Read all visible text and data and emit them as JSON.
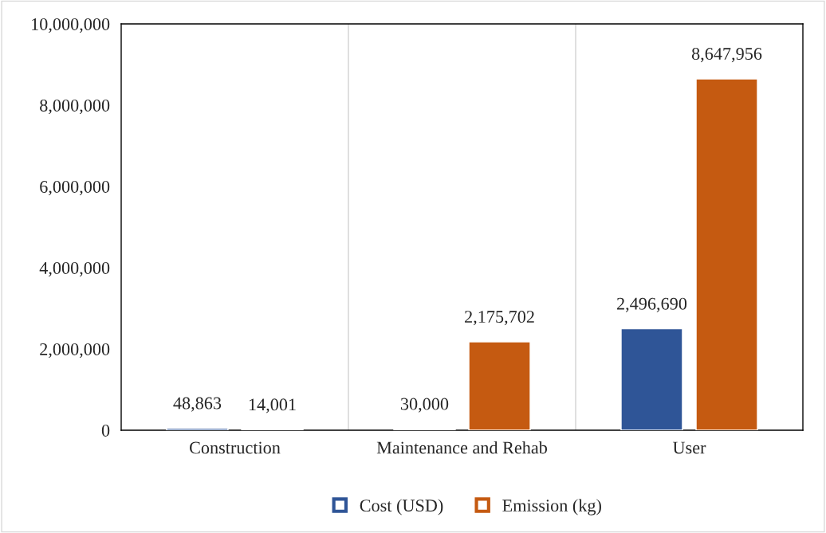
{
  "chart_data": {
    "type": "bar",
    "categories": [
      "Construction",
      "Maintenance and Rehab",
      "User"
    ],
    "series": [
      {
        "name": "Cost (USD)",
        "color": "#2f5597",
        "values": [
          48863,
          30000,
          2496690
        ],
        "value_labels": [
          "48,863",
          "30,000",
          "2,496,690"
        ]
      },
      {
        "name": "Emission (kg)",
        "color": "#c55a11",
        "values": [
          14001,
          2175702,
          8647956
        ],
        "value_labels": [
          "14,001",
          "2,175,702",
          "8,647,956"
        ]
      }
    ],
    "ylim": [
      0,
      10000000
    ],
    "yticks": [
      {
        "value": 0,
        "label": "0"
      },
      {
        "value": 2000000,
        "label": "2,000,000"
      },
      {
        "value": 4000000,
        "label": "4,000,000"
      },
      {
        "value": 6000000,
        "label": "6,000,000"
      },
      {
        "value": 8000000,
        "label": "8,000,000"
      },
      {
        "value": 10000000,
        "label": "10,000,000"
      }
    ],
    "grid": "x",
    "legend": "bottom"
  }
}
